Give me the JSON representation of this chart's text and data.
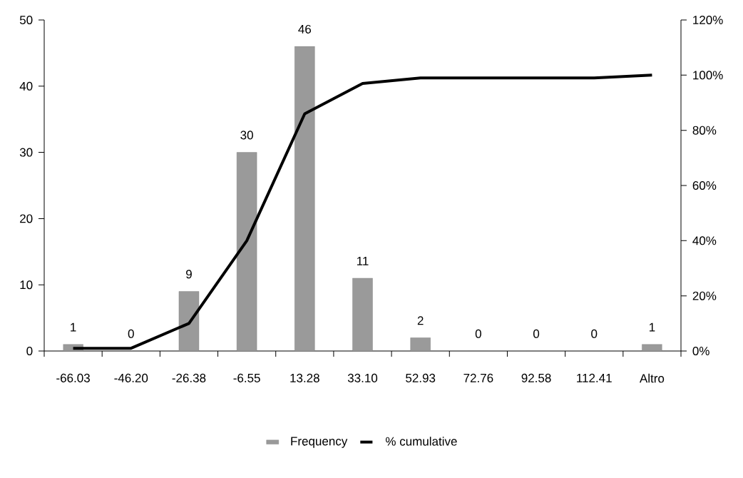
{
  "chart_data": {
    "type": "bar",
    "categories": [
      "-66.03",
      "-46.20",
      "-26.38",
      "-6.55",
      "13.28",
      "33.10",
      "52.93",
      "72.76",
      "92.58",
      "112.41",
      "Altro"
    ],
    "series": [
      {
        "name": "Frequency",
        "color": "#9a9a9a",
        "values": [
          1,
          0,
          9,
          30,
          46,
          11,
          2,
          0,
          0,
          0,
          1
        ],
        "value_labels": [
          "1",
          "0",
          "9",
          "30",
          "46",
          "11",
          "2",
          "0",
          "0",
          "0",
          "1"
        ]
      },
      {
        "name": "% cumulative",
        "type": "line",
        "axis": "y2",
        "color": "#000000",
        "values": [
          1,
          1,
          10,
          40,
          86,
          97,
          99,
          99,
          99,
          99,
          100
        ]
      }
    ],
    "ylim": [
      0,
      50
    ],
    "yticks": [
      0,
      10,
      20,
      30,
      40,
      50
    ],
    "y2lim": [
      0,
      120
    ],
    "y2ticks": [
      {
        "value": 0,
        "label": "0%"
      },
      {
        "value": 20,
        "label": "20%"
      },
      {
        "value": 40,
        "label": "40%"
      },
      {
        "value": 60,
        "label": "60%"
      },
      {
        "value": 80,
        "label": "80%"
      },
      {
        "value": 100,
        "label": "100%"
      },
      {
        "value": 120,
        "label": "120%"
      }
    ],
    "marker": "none",
    "legend": "bottom"
  }
}
